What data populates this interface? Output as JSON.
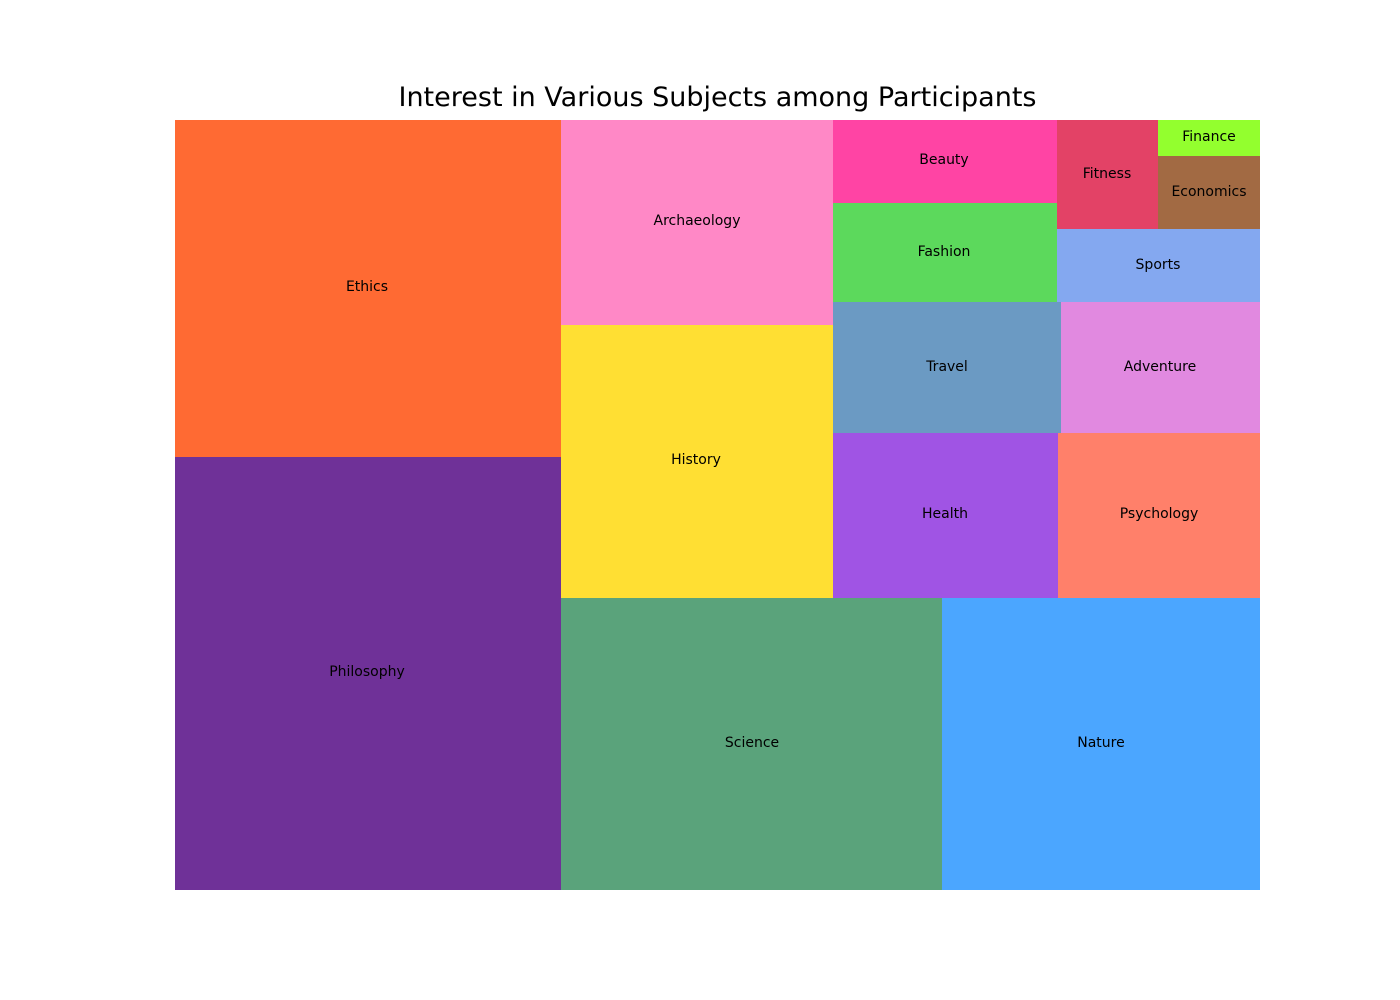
{
  "chart_data": {
    "type": "treemap",
    "title": "Interest in Various Subjects among Participants",
    "items": [
      {
        "label": "Philosophy",
        "value": 23.5,
        "color": "#6f3198"
      },
      {
        "label": "Ethics",
        "value": 18.3,
        "color": "#ff6a33"
      },
      {
        "label": "Archaeology",
        "value": 7.9,
        "color": "#ff88c6"
      },
      {
        "label": "History",
        "value": 10.5,
        "color": "#ffdf33"
      },
      {
        "label": "Science",
        "value": 15.7,
        "color": "#5aa37b"
      },
      {
        "label": "Nature",
        "value": 13.2,
        "color": "#4ba6ff"
      },
      {
        "label": "Beauty",
        "value": 2.6,
        "color": "#ff44a4"
      },
      {
        "label": "Fashion",
        "value": 3.1,
        "color": "#5cd95c"
      },
      {
        "label": "Travel",
        "value": 4.2,
        "color": "#6b9ac3"
      },
      {
        "label": "Health",
        "value": 5.2,
        "color": "#a054e4"
      },
      {
        "label": "Fitness",
        "value": 1.6,
        "color": "#e34266"
      },
      {
        "label": "Finance",
        "value": 0.5,
        "color": "#93ff2e"
      },
      {
        "label": "Economics",
        "value": 1.1,
        "color": "#a26a43"
      },
      {
        "label": "Sports",
        "value": 2.1,
        "color": "#84a8f0"
      },
      {
        "label": "Adventure",
        "value": 3.7,
        "color": "#e189e0"
      },
      {
        "label": "Psychology",
        "value": 4.7,
        "color": "#ff806a"
      }
    ]
  }
}
